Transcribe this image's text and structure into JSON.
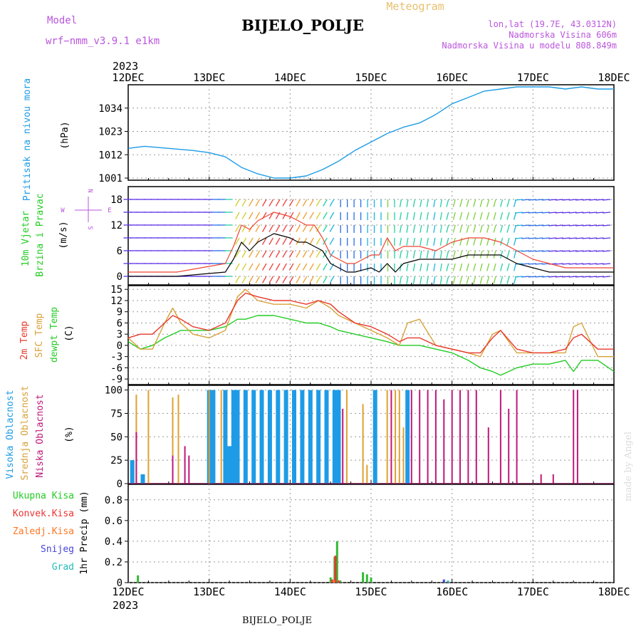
{
  "header": {
    "model_label": "Model",
    "model_name": "wrf−nmm_v3.9.1  e1km",
    "subtitle": "Meteogram",
    "station": "BIJELO_POLJE",
    "lonlat": "lon,lat (19.7E, 43.0312N)",
    "elevation": "Nadmorska Visina 606m",
    "model_elevation": "Nadmorska Visina u modelu 808.849m",
    "year_top": "2023",
    "year_bottom": "2023",
    "footer_station": "BIJELO_POLJE",
    "watermark": "made by Angel"
  },
  "x_ticks": [
    "12DEC",
    "13DEC",
    "14DEC",
    "15DEC",
    "16DEC",
    "17DEC",
    "18DEC"
  ],
  "colors": {
    "pressure": "#1e9be6",
    "wind_speed": "#000000",
    "wind_gust": "#ee4433",
    "temp2m": "#e8382c",
    "sfc_temp": "#d8a23a",
    "dewpt": "#22cc22",
    "high_cloud": "#1e9be6",
    "mid_cloud": "#e0a030",
    "low_cloud": "#c0187a",
    "total_precip": "#33bb33",
    "conv_precip": "#ee3333",
    "freezing_precip": "#ff7722",
    "snow": "#4444dd",
    "graupel": "#22bbbb",
    "wind_side": "#bb55dd"
  },
  "chart_data": [
    {
      "type": "line",
      "panel": "pressure",
      "ylabel_main": "Pritisak na nivou mora",
      "ylabel_unit": "(hPa)",
      "yticks": [
        1001,
        1012,
        1023,
        1034
      ],
      "ylim": [
        1000,
        1045
      ],
      "x_days": [
        0,
        0.2,
        0.5,
        0.8,
        1.0,
        1.2,
        1.4,
        1.6,
        1.8,
        2.0,
        2.2,
        2.4,
        2.6,
        2.8,
        3.0,
        3.2,
        3.4,
        3.6,
        3.8,
        4.0,
        4.2,
        4.4,
        4.6,
        4.8,
        5.0,
        5.2,
        5.4,
        5.6,
        5.8,
        6.0
      ],
      "values": [
        1015,
        1016,
        1015,
        1014,
        1013,
        1011,
        1006,
        1003,
        1001,
        1001,
        1002,
        1005,
        1009,
        1014,
        1018,
        1022,
        1025,
        1027,
        1031,
        1036,
        1039,
        1042,
        1043,
        1044,
        1044,
        1044,
        1043,
        1044,
        1043,
        1043
      ]
    },
    {
      "type": "line",
      "panel": "wind",
      "ylabel_main": "10m Vjetar",
      "ylabel_sub": "Brzina i Pravac",
      "ylabel_unit": "(m/s)",
      "side_labels": [
        "N",
        "W",
        "E",
        "S"
      ],
      "yticks": [
        0,
        6,
        12,
        18
      ],
      "ylim": [
        -2,
        21
      ],
      "x_days": [
        0,
        0.3,
        0.6,
        0.9,
        1.2,
        1.3,
        1.4,
        1.5,
        1.6,
        1.8,
        2.0,
        2.1,
        2.2,
        2.3,
        2.4,
        2.5,
        2.6,
        2.7,
        2.8,
        3.0,
        3.1,
        3.2,
        3.3,
        3.4,
        3.6,
        3.8,
        4.0,
        4.2,
        4.4,
        4.6,
        4.8,
        5.0,
        5.2,
        5.4,
        5.6,
        5.8,
        6.0
      ],
      "series": [
        {
          "name": "speed",
          "values": [
            0,
            0,
            0,
            0.5,
            1,
            4,
            8,
            6,
            8,
            10,
            9,
            8,
            8,
            7,
            6,
            3,
            2,
            1,
            1,
            2,
            1,
            3,
            1,
            3,
            4,
            4,
            4,
            5,
            5,
            5,
            3,
            2,
            1,
            1,
            1,
            1,
            1
          ]
        },
        {
          "name": "gust",
          "values": [
            1,
            1,
            1,
            2,
            3,
            7,
            12,
            11,
            13,
            15,
            14,
            13,
            12,
            12,
            9,
            5,
            4,
            3,
            3,
            5,
            5,
            9,
            6,
            7,
            7,
            6,
            8,
            9,
            9,
            8,
            6,
            4,
            3,
            2,
            2,
            2,
            2
          ]
        }
      ]
    },
    {
      "type": "line",
      "panel": "temperature",
      "ylabel_lines": [
        "2m Temp",
        "SFC Temp",
        "dewpt Temp"
      ],
      "ylabel_unit": "(C)",
      "yticks": [
        -9,
        -6,
        -3,
        0,
        3,
        6,
        9,
        12,
        15
      ],
      "ylim": [
        -10.5,
        16
      ],
      "x_days": [
        0,
        0.15,
        0.3,
        0.45,
        0.55,
        0.65,
        0.8,
        1.0,
        1.2,
        1.35,
        1.45,
        1.6,
        1.8,
        2.0,
        2.2,
        2.35,
        2.5,
        2.6,
        2.8,
        3.0,
        3.2,
        3.35,
        3.45,
        3.6,
        3.8,
        4.0,
        4.2,
        4.35,
        4.5,
        4.6,
        4.8,
        5.0,
        5.2,
        5.4,
        5.5,
        5.6,
        5.8,
        6.0
      ],
      "series": [
        {
          "name": "t2m",
          "values": [
            2,
            3,
            3,
            6,
            8,
            7,
            5,
            4,
            6,
            12,
            14,
            13,
            12,
            12,
            11,
            12,
            11,
            9,
            6,
            5,
            3,
            1,
            2,
            2,
            0,
            -1,
            -2,
            -2,
            2,
            4,
            -1,
            -2,
            -2,
            -1,
            2,
            3,
            -1,
            -1
          ]
        },
        {
          "name": "sfc",
          "values": [
            2,
            -1,
            -1,
            6,
            10,
            6,
            3,
            2,
            4,
            13,
            15,
            12,
            11,
            11,
            10,
            12,
            10,
            8,
            6,
            4,
            2,
            0,
            6,
            7,
            0,
            -1,
            -2,
            -3,
            3,
            4,
            -2,
            -2,
            -2,
            -2,
            5,
            6,
            -3,
            -3
          ]
        },
        {
          "name": "dewpt",
          "values": [
            1,
            -1,
            0,
            2,
            3,
            4,
            4,
            4,
            5,
            7,
            7,
            8,
            8,
            7,
            6,
            6,
            5,
            4,
            3,
            2,
            1,
            0,
            0,
            0,
            -1,
            -2,
            -4,
            -6,
            -7,
            -8,
            -6,
            -5,
            -5,
            -4,
            -7,
            -4,
            -4,
            -7
          ]
        }
      ]
    },
    {
      "type": "bar",
      "panel": "clouds",
      "ylabel_lines": [
        "Visoka Oblacnost",
        "Srednja Oblacnost",
        "Niska Oblacnost"
      ],
      "ylabel_unit": "(%)",
      "yticks": [
        0,
        25,
        50,
        75,
        100
      ],
      "ylim": [
        0,
        105
      ],
      "series": [
        {
          "name": "high",
          "bars": [
            [
              0.05,
              25
            ],
            [
              0.18,
              10
            ],
            [
              1.0,
              100
            ],
            [
              1.05,
              100
            ],
            [
              1.2,
              100
            ],
            [
              1.25,
              40
            ],
            [
              1.3,
              100
            ],
            [
              1.35,
              100
            ],
            [
              1.45,
              100
            ],
            [
              1.55,
              100
            ],
            [
              1.65,
              100
            ],
            [
              1.75,
              100
            ],
            [
              1.85,
              100
            ],
            [
              1.95,
              100
            ],
            [
              2.05,
              100
            ],
            [
              2.15,
              100
            ],
            [
              2.25,
              100
            ],
            [
              2.35,
              100
            ],
            [
              2.45,
              100
            ],
            [
              2.55,
              100
            ],
            [
              2.6,
              100
            ],
            [
              3.05,
              100
            ],
            [
              3.45,
              100
            ]
          ]
        },
        {
          "name": "mid",
          "bars": [
            [
              0.1,
              95
            ],
            [
              0.25,
              100
            ],
            [
              0.55,
              92
            ],
            [
              0.62,
              95
            ],
            [
              1.0,
              100
            ],
            [
              1.15,
              100
            ],
            [
              2.7,
              100
            ],
            [
              2.9,
              85
            ],
            [
              2.95,
              20
            ],
            [
              3.2,
              100
            ],
            [
              3.3,
              100
            ],
            [
              3.35,
              100
            ],
            [
              3.4,
              60
            ]
          ]
        },
        {
          "name": "low",
          "bars": [
            [
              0.1,
              55
            ],
            [
              0.55,
              30
            ],
            [
              0.7,
              40
            ],
            [
              0.75,
              30
            ],
            [
              2.65,
              80
            ],
            [
              3.25,
              100
            ],
            [
              3.5,
              100
            ],
            [
              3.6,
              100
            ],
            [
              3.7,
              100
            ],
            [
              3.8,
              100
            ],
            [
              3.9,
              90
            ],
            [
              4.0,
              100
            ],
            [
              4.1,
              100
            ],
            [
              4.2,
              100
            ],
            [
              4.3,
              100
            ],
            [
              4.45,
              60
            ],
            [
              4.6,
              100
            ],
            [
              4.7,
              80
            ],
            [
              4.8,
              100
            ],
            [
              5.1,
              10
            ],
            [
              5.25,
              10
            ],
            [
              5.5,
              100
            ],
            [
              5.55,
              100
            ]
          ]
        }
      ]
    },
    {
      "type": "bar",
      "panel": "precip",
      "ylabel_lines": [
        "Ukupna Kisa",
        "Konvek.Kisa",
        "Zaledj.Kisa",
        "Snijeg",
        "Grad"
      ],
      "ylabel_unit": "1hr Precip (mm)",
      "yticks": [
        0,
        0.2,
        0.4,
        0.6,
        0.8
      ],
      "ylim": [
        0,
        0.95
      ],
      "series": [
        {
          "name": "total",
          "bars": [
            [
              0.12,
              0.07
            ],
            [
              2.5,
              0.05
            ],
            [
              2.55,
              0.25
            ],
            [
              2.58,
              0.4
            ],
            [
              2.62,
              0.02
            ],
            [
              2.9,
              0.1
            ],
            [
              2.95,
              0.08
            ],
            [
              3.0,
              0.05
            ]
          ]
        },
        {
          "name": "conv",
          "bars": [
            [
              2.52,
              0.03
            ],
            [
              2.56,
              0.26
            ],
            [
              2.6,
              0.02
            ]
          ]
        },
        {
          "name": "freezing",
          "bars": [
            [
              2.54,
              0.02
            ]
          ]
        },
        {
          "name": "snow",
          "bars": [
            [
              3.9,
              0.03
            ]
          ]
        },
        {
          "name": "graupel",
          "bars": [
            [
              3.95,
              0.02
            ]
          ]
        }
      ]
    }
  ]
}
